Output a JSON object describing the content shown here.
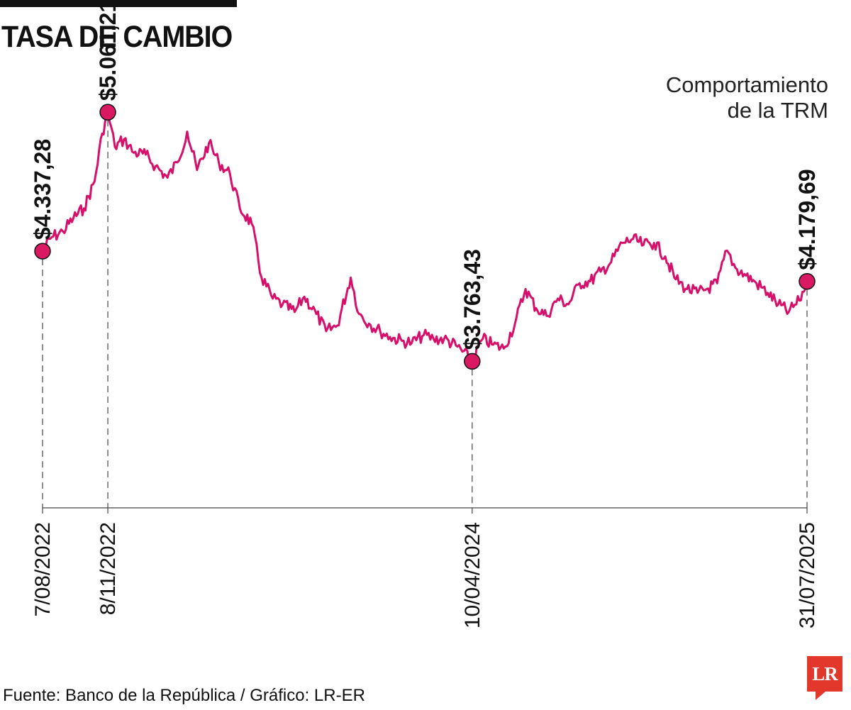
{
  "header": {
    "title": "TASA DE CAMBIO",
    "subtitle_lines": [
      "Comportamiento",
      "de la TRM"
    ]
  },
  "footer": {
    "source": "Fuente: Banco de la República / Gráfico: LR-ER",
    "logo_text": "LR"
  },
  "colors": {
    "series": "#d6106a",
    "marker_fill": "#d91a63",
    "axis": "#444444",
    "logo": "#e2372b"
  },
  "chart_data": {
    "type": "line",
    "title": "TASA DE CAMBIO",
    "subtitle": "Comportamiento de la TRM",
    "ylabel": "",
    "xlabel": "",
    "x_range": [
      "2022-08-07",
      "2025-07-31"
    ],
    "y_range": [
      3000,
      5350
    ],
    "grid": false,
    "legend": "none",
    "series": [
      {
        "values": [
          [
            "2022-08-07",
            4337.28
          ],
          [
            "2022-08-20",
            4410
          ],
          [
            "2022-09-05",
            4440
          ],
          [
            "2022-09-20",
            4510
          ],
          [
            "2022-10-05",
            4560
          ],
          [
            "2022-10-20",
            4700
          ],
          [
            "2022-10-31",
            4950
          ],
          [
            "2022-11-08",
            5061.21
          ],
          [
            "2022-11-18",
            4880
          ],
          [
            "2022-12-01",
            4920
          ],
          [
            "2022-12-15",
            4850
          ],
          [
            "2023-01-01",
            4840
          ],
          [
            "2023-01-15",
            4780
          ],
          [
            "2023-02-01",
            4720
          ],
          [
            "2023-02-15",
            4800
          ],
          [
            "2023-03-01",
            4960
          ],
          [
            "2023-03-15",
            4760
          ],
          [
            "2023-04-01",
            4900
          ],
          [
            "2023-04-15",
            4800
          ],
          [
            "2023-05-01",
            4740
          ],
          [
            "2023-05-15",
            4560
          ],
          [
            "2023-06-01",
            4480
          ],
          [
            "2023-06-15",
            4200
          ],
          [
            "2023-07-01",
            4090
          ],
          [
            "2023-07-15",
            4060
          ],
          [
            "2023-08-01",
            4020
          ],
          [
            "2023-08-15",
            4100
          ],
          [
            "2023-09-01",
            4010
          ],
          [
            "2023-09-15",
            3920
          ],
          [
            "2023-10-01",
            3950
          ],
          [
            "2023-10-20",
            4200
          ],
          [
            "2023-11-01",
            4010
          ],
          [
            "2023-11-15",
            3960
          ],
          [
            "2023-12-01",
            3920
          ],
          [
            "2023-12-15",
            3890
          ],
          [
            "2024-01-01",
            3870
          ],
          [
            "2024-01-15",
            3860
          ],
          [
            "2024-02-01",
            3900
          ],
          [
            "2024-02-15",
            3880
          ],
          [
            "2024-03-01",
            3880
          ],
          [
            "2024-03-20",
            3840
          ],
          [
            "2024-04-10",
            3763.43
          ],
          [
            "2024-04-25",
            3880
          ],
          [
            "2024-05-10",
            3850
          ],
          [
            "2024-05-25",
            3830
          ],
          [
            "2024-06-10",
            3960
          ],
          [
            "2024-06-25",
            4140
          ],
          [
            "2024-07-10",
            4040
          ],
          [
            "2024-07-25",
            4000
          ],
          [
            "2024-08-10",
            4090
          ],
          [
            "2024-08-25",
            4060
          ],
          [
            "2024-09-10",
            4170
          ],
          [
            "2024-09-25",
            4180
          ],
          [
            "2024-10-10",
            4230
          ],
          [
            "2024-10-25",
            4280
          ],
          [
            "2024-11-10",
            4380
          ],
          [
            "2024-11-25",
            4400
          ],
          [
            "2024-12-10",
            4370
          ],
          [
            "2024-12-25",
            4380
          ],
          [
            "2025-01-10",
            4310
          ],
          [
            "2025-01-25",
            4190
          ],
          [
            "2025-02-10",
            4140
          ],
          [
            "2025-02-25",
            4120
          ],
          [
            "2025-03-10",
            4140
          ],
          [
            "2025-03-25",
            4170
          ],
          [
            "2025-04-08",
            4340
          ],
          [
            "2025-04-20",
            4250
          ],
          [
            "2025-05-05",
            4210
          ],
          [
            "2025-05-20",
            4170
          ],
          [
            "2025-06-05",
            4120
          ],
          [
            "2025-06-20",
            4060
          ],
          [
            "2025-07-05",
            4020
          ],
          [
            "2025-07-20",
            4080
          ],
          [
            "2025-07-31",
            4179.69
          ]
        ]
      }
    ],
    "highlights": [
      {
        "date": "2022-08-07",
        "date_label": "7/08/2022",
        "value": 4337.28,
        "value_label": "$4.337,28"
      },
      {
        "date": "2022-11-08",
        "date_label": "8/11/2022",
        "value": 5061.21,
        "value_label": "$5.061,21"
      },
      {
        "date": "2024-04-10",
        "date_label": "10/04/2024",
        "value": 3763.43,
        "value_label": "$3.763,43"
      },
      {
        "date": "2025-07-31",
        "date_label": "31/07/2025",
        "value": 4179.69,
        "value_label": "$4.179,69"
      }
    ]
  }
}
